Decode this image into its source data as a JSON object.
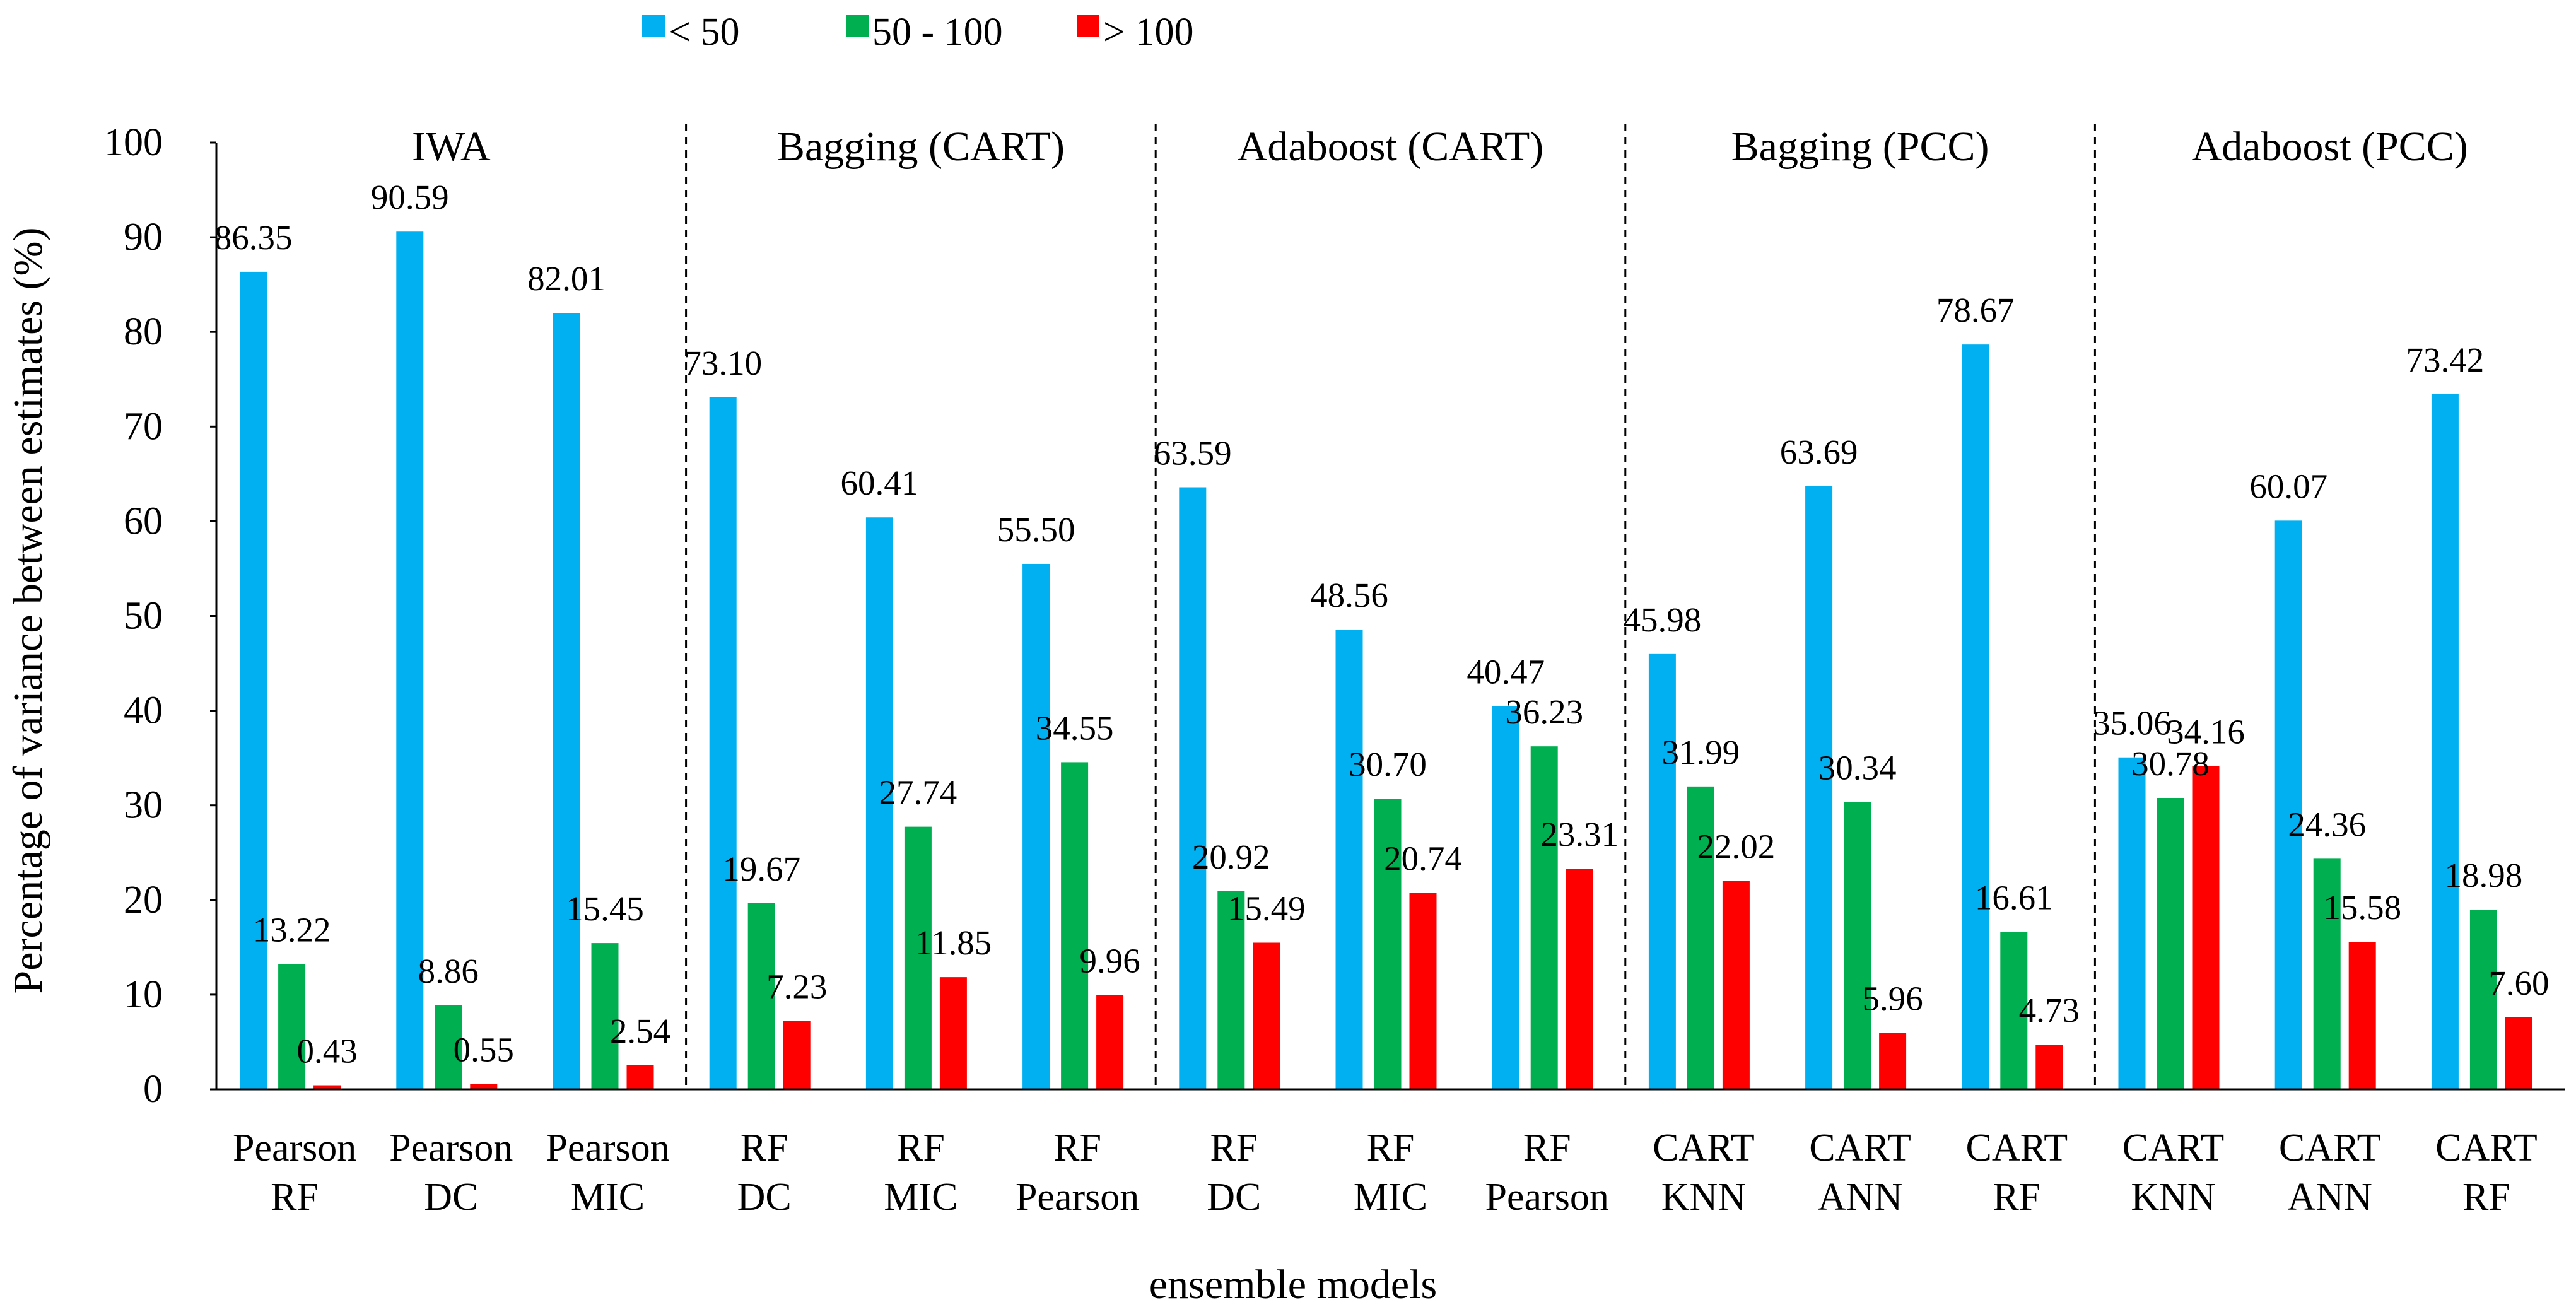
{
  "chart_data": {
    "type": "bar",
    "title": "",
    "xlabel": "ensemble models",
    "ylabel": "Percentage of variance between estimates (%)",
    "ylim": [
      0,
      100
    ],
    "yticks": [
      0,
      10,
      20,
      30,
      40,
      50,
      60,
      70,
      80,
      90,
      100
    ],
    "grid": false,
    "legend_position": "top",
    "groups": [
      {
        "label": "IWA",
        "start": 0,
        "end": 3
      },
      {
        "label": "Bagging (CART)",
        "start": 3,
        "end": 6
      },
      {
        "label": "Adaboost (CART)",
        "start": 6,
        "end": 9
      },
      {
        "label": "Bagging (PCC)",
        "start": 9,
        "end": 12
      },
      {
        "label": "Adaboost (PCC)",
        "start": 12,
        "end": 15
      }
    ],
    "categories": [
      [
        "Pearson",
        "RF"
      ],
      [
        "Pearson",
        "DC"
      ],
      [
        "Pearson",
        "MIC"
      ],
      [
        "RF",
        "DC"
      ],
      [
        "RF",
        "MIC"
      ],
      [
        "RF",
        "Pearson"
      ],
      [
        "RF",
        "DC"
      ],
      [
        "RF",
        "MIC"
      ],
      [
        "RF",
        "Pearson"
      ],
      [
        "CART",
        "KNN"
      ],
      [
        "CART",
        "ANN"
      ],
      [
        "CART",
        "RF"
      ],
      [
        "CART",
        "KNN"
      ],
      [
        "CART",
        "ANN"
      ],
      [
        "CART",
        "RF"
      ]
    ],
    "series": [
      {
        "name": "< 50",
        "color": "#00b0f0",
        "values": [
          86.35,
          90.59,
          82.01,
          73.1,
          60.41,
          55.5,
          63.59,
          48.56,
          40.47,
          45.98,
          63.69,
          78.67,
          35.06,
          60.07,
          73.42
        ],
        "labels": [
          "86.35",
          "90.59",
          "82.01",
          "73.10",
          "60.41",
          "55.50",
          "63.59",
          "48.56",
          "40.47",
          "45.98",
          "63.69",
          "78.67",
          "35.06",
          "60.07",
          "73.42"
        ]
      },
      {
        "name": "50 - 100",
        "color": "#00b050",
        "values": [
          13.22,
          8.86,
          15.45,
          19.67,
          27.74,
          34.55,
          20.92,
          30.7,
          36.23,
          31.99,
          30.34,
          16.61,
          30.78,
          24.36,
          18.98
        ],
        "labels": [
          "13.22",
          "8.86",
          "15.45",
          "19.67",
          "27.74",
          "34.55",
          "20.92",
          "30.70",
          "36.23",
          "31.99",
          "30.34",
          "16.61",
          "30.78",
          "24.36",
          "18.98"
        ]
      },
      {
        "name": "> 100",
        "color": "#ff0000",
        "values": [
          0.43,
          0.55,
          2.54,
          7.23,
          11.85,
          9.96,
          15.49,
          20.74,
          23.31,
          22.02,
          5.96,
          4.73,
          34.16,
          15.58,
          7.6
        ],
        "labels": [
          "0.43",
          "0.55",
          "2.54",
          "7.23",
          "11.85",
          "9.96",
          "15.49",
          "20.74",
          "23.31",
          "22.02",
          "5.96",
          "4.73",
          "34.16",
          "15.58",
          "7.60"
        ]
      }
    ]
  }
}
